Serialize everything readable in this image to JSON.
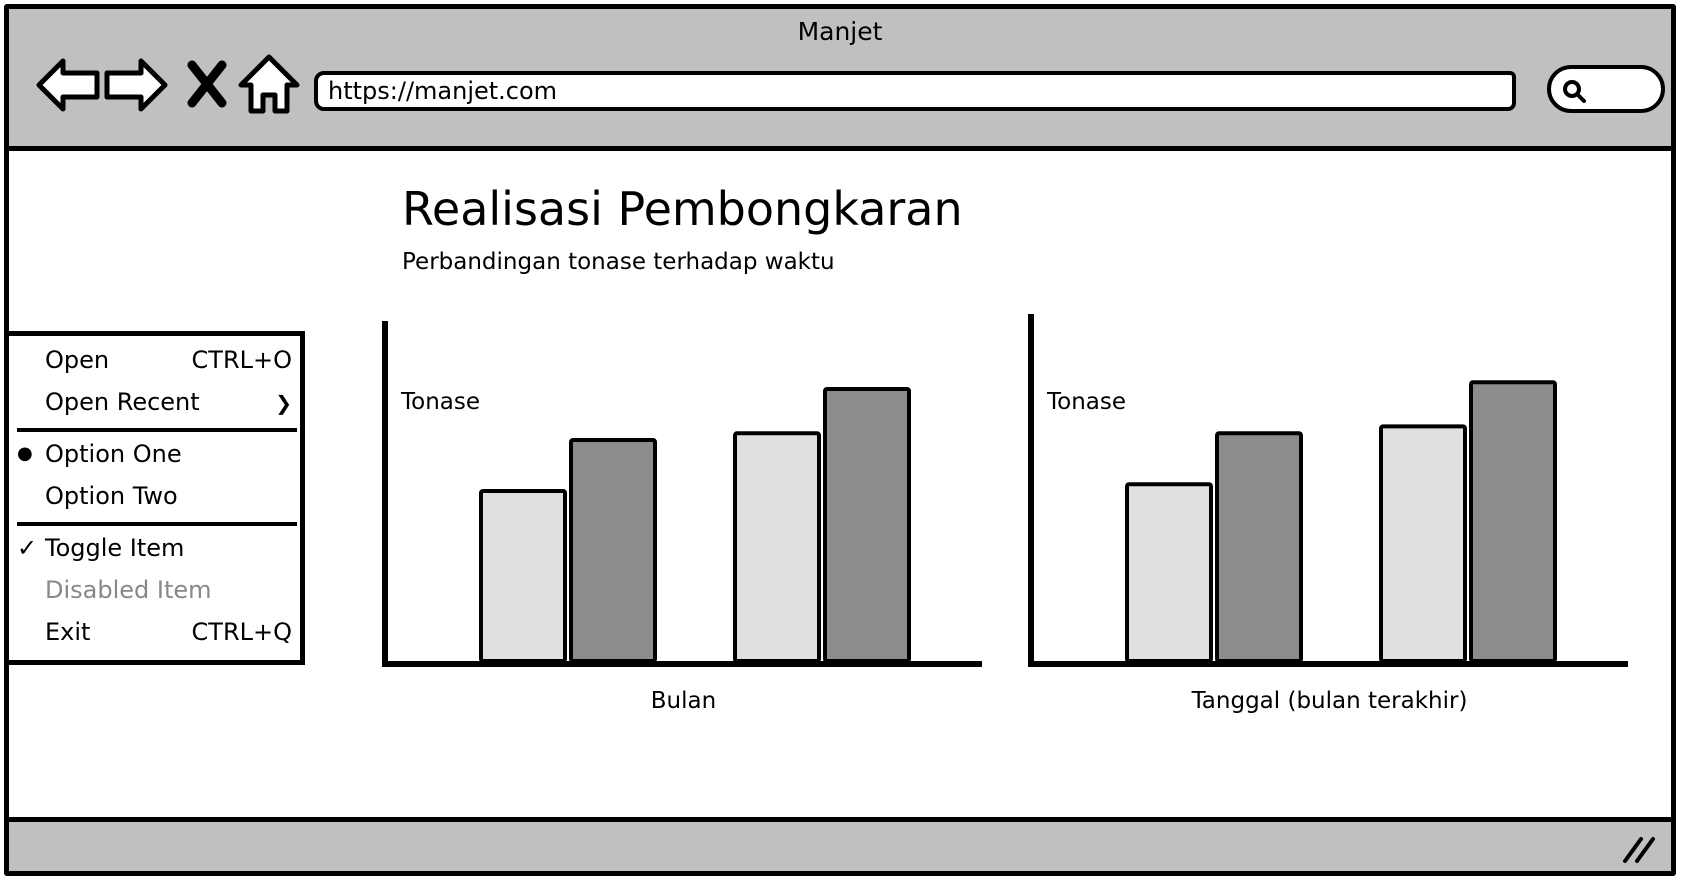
{
  "window": {
    "title": "Manjet"
  },
  "toolbar": {
    "buttons": [
      {
        "name": "back",
        "icon": "arrow-left-icon"
      },
      {
        "name": "forward",
        "icon": "arrow-right-icon"
      },
      {
        "name": "stop",
        "icon": "close-icon"
      },
      {
        "name": "home",
        "icon": "home-icon"
      }
    ],
    "url": "https://manjet.com",
    "search_icon": "search-icon"
  },
  "main": {
    "title": "Realisasi Pembongkaran",
    "subtitle": "Perbandingan tonase terhadap waktu"
  },
  "menu": {
    "items": [
      {
        "label": "Open",
        "shortcut": "CTRL+O"
      },
      {
        "label": "Open Recent",
        "submenu_indicator": "❯"
      },
      {
        "label": "Option One",
        "mark": "●",
        "selected": true
      },
      {
        "label": "Option Two"
      },
      {
        "label": "Toggle Item",
        "mark": "✓",
        "checked": true
      },
      {
        "label": "Disabled Item",
        "disabled": true
      },
      {
        "label": "Exit",
        "shortcut": "CTRL+Q"
      }
    ]
  },
  "colors": {
    "bar_light": "#e0e0e0",
    "bar_dark": "#8c8c8c",
    "chrome": "#c0c0c0"
  },
  "chart_data": [
    {
      "type": "bar",
      "ylabel": "Tonase",
      "xlabel": "Bulan",
      "categories": [
        "",
        ""
      ],
      "series": [
        {
          "values": [
            5.0,
            6.5
          ]
        },
        {
          "values": [
            6.7,
            8.0
          ]
        }
      ],
      "ylim": [
        0,
        10
      ],
      "grid": false,
      "legend": "none"
    },
    {
      "type": "bar",
      "ylabel": "Tonase",
      "xlabel": "Tanggal (bulan terakhir)",
      "categories": [
        "",
        ""
      ],
      "series": [
        {
          "values": [
            5.2,
            6.7
          ]
        },
        {
          "values": [
            6.9,
            8.2
          ]
        }
      ],
      "ylim": [
        0,
        10
      ],
      "grid": false,
      "legend": "none"
    }
  ]
}
